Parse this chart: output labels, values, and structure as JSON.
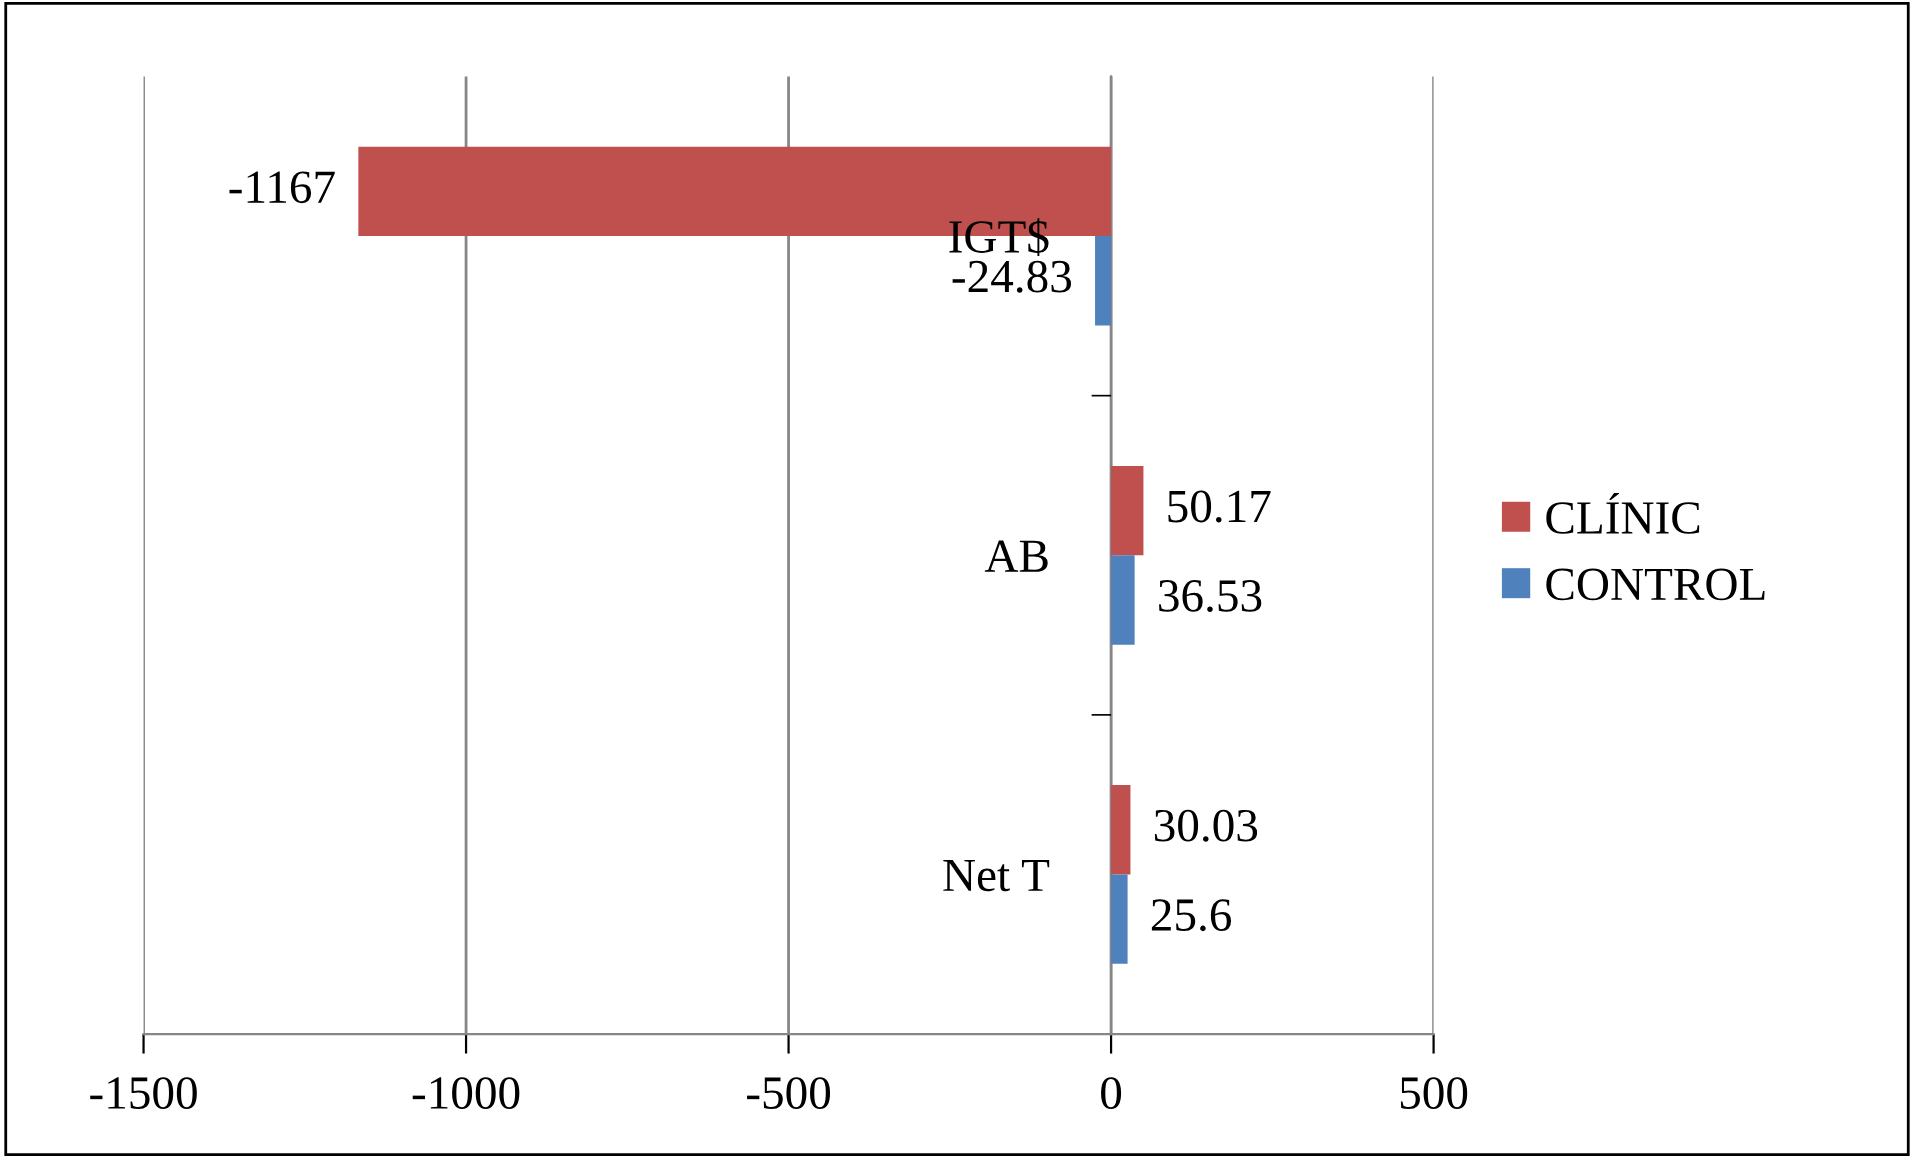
{
  "chart_data": {
    "type": "bar",
    "orientation": "horizontal",
    "categories": [
      "IGT$",
      "AB",
      "Net T"
    ],
    "series": [
      {
        "name": "CLÍNIC",
        "color": "#c0504d",
        "values": [
          -1167,
          50.17,
          30.03
        ]
      },
      {
        "name": "CONTROL",
        "color": "#4f81bd",
        "values": [
          -24.83,
          36.53,
          25.6
        ]
      }
    ],
    "xlim": [
      -1500,
      500
    ],
    "xticks": [
      -1500,
      -1000,
      -500,
      0,
      500
    ],
    "grid": "x",
    "legend": "right",
    "data_labels": true
  }
}
